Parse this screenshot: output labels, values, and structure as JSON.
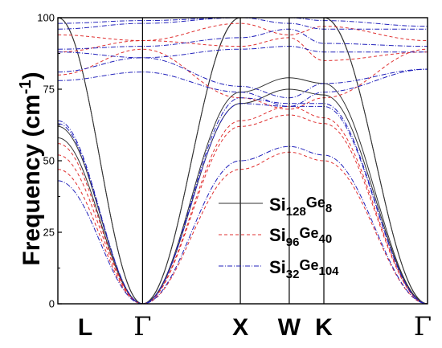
{
  "chart_data": {
    "type": "line",
    "title": "",
    "xlabel": "",
    "ylabel": "Frequency (cm",
    "ylabel_sup": "-1",
    "ylabel_close": ")",
    "ylim": [
      0,
      100
    ],
    "yticks": [
      0,
      25,
      50,
      75,
      100
    ],
    "ytick_labels": [
      "0",
      "25",
      "50",
      "75",
      "100"
    ],
    "x_points": [
      {
        "label": "L",
        "pos": 0
      },
      {
        "label": "Γ",
        "pos": 0.866
      },
      {
        "label": "X",
        "pos": 1.866
      },
      {
        "label": "W",
        "pos": 2.366
      },
      {
        "label": "K",
        "pos": 2.72
      },
      {
        "label": "Γ",
        "pos": 3.78
      }
    ],
    "legend": [
      {
        "base1": "Si",
        "sub1": "128",
        "base2": "Ge",
        "sub2": "8",
        "color": "#333333",
        "dash": "solid"
      },
      {
        "base1": "Si",
        "sub1": "96",
        "base2": "Ge",
        "sub2": "40",
        "color": "#e03030",
        "dash": "dashed"
      },
      {
        "base1": "Si",
        "sub1": "32",
        "base2": "Ge",
        "sub2": "104",
        "color": "#2222bb",
        "dash": "dashdot"
      }
    ],
    "series": [
      {
        "name": "Si128Ge8",
        "color": "#333333",
        "dash": "solid",
        "bands": [
          [
            62,
            0,
            70,
            75,
            73,
            0
          ],
          [
            58,
            0,
            74,
            79,
            77,
            0
          ],
          [
            100,
            0,
            100,
            100,
            100,
            0
          ],
          [
            100,
            0,
            100,
            100,
            100,
            0
          ]
        ]
      },
      {
        "name": "Si96Ge40",
        "color": "#e03030",
        "dash": "dashed",
        "bands": [
          [
            47,
            0,
            47,
            53,
            50,
            0
          ],
          [
            52,
            0,
            64,
            69,
            65,
            0
          ],
          [
            56,
            0,
            62,
            66,
            63,
            0
          ],
          [
            80,
            89,
            72,
            68,
            72,
            89
          ],
          [
            88,
            92,
            90,
            93,
            85,
            88
          ],
          [
            94,
            92,
            98,
            94,
            97,
            92
          ]
        ]
      },
      {
        "name": "Si32Ge104",
        "color": "#2222bb",
        "dash": "dashdot",
        "bands": [
          [
            43,
            0,
            50,
            55,
            52,
            0
          ],
          [
            63,
            0,
            70,
            69,
            69,
            0
          ],
          [
            64,
            0,
            72,
            70,
            70,
            0
          ],
          [
            78,
            81,
            74,
            69,
            74,
            82
          ],
          [
            81,
            86,
            76,
            72,
            77,
            82
          ],
          [
            88,
            86,
            89,
            90,
            88,
            88
          ],
          [
            89,
            90,
            93,
            96,
            91,
            90
          ],
          [
            96,
            98,
            100,
            98,
            96,
            96
          ],
          [
            98,
            99,
            100,
            100,
            99,
            97
          ]
        ]
      }
    ]
  }
}
